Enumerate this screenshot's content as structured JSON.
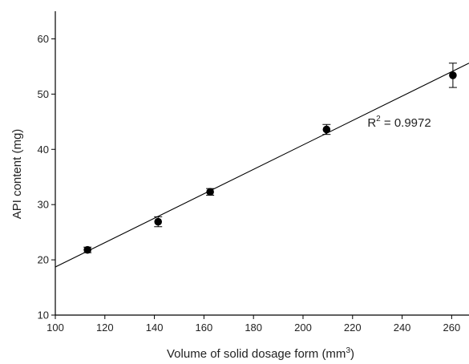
{
  "chart_data": {
    "type": "scatter",
    "title": "",
    "xlabel": "Volume of solid dosage form (mm",
    "xlabel_sup": "3",
    "xlabel_close": ")",
    "ylabel": "API content (mg)",
    "xlim": [
      100,
      267
    ],
    "ylim": [
      10,
      65
    ],
    "xticks": [
      100,
      120,
      140,
      160,
      180,
      200,
      220,
      240,
      260
    ],
    "yticks": [
      10,
      20,
      30,
      40,
      50,
      60
    ],
    "grid": false,
    "series": [
      {
        "x": [
          113,
          141.5,
          162.5,
          209.5,
          260.5
        ],
        "y": [
          21.8,
          26.9,
          32.3,
          43.6,
          53.4
        ],
        "error": [
          0.5,
          0.9,
          0.6,
          0.9,
          2.2
        ]
      }
    ],
    "fit_line": {
      "x": [
        100,
        267
      ],
      "y": [
        18.7,
        55.6
      ]
    },
    "annotation": {
      "text": "R",
      "sup": "2",
      "rest": " = 0.9972",
      "x": 226,
      "y": 44.8
    },
    "colors": {
      "marker": "#000000",
      "line": "#000000",
      "axis": "#000000"
    }
  }
}
